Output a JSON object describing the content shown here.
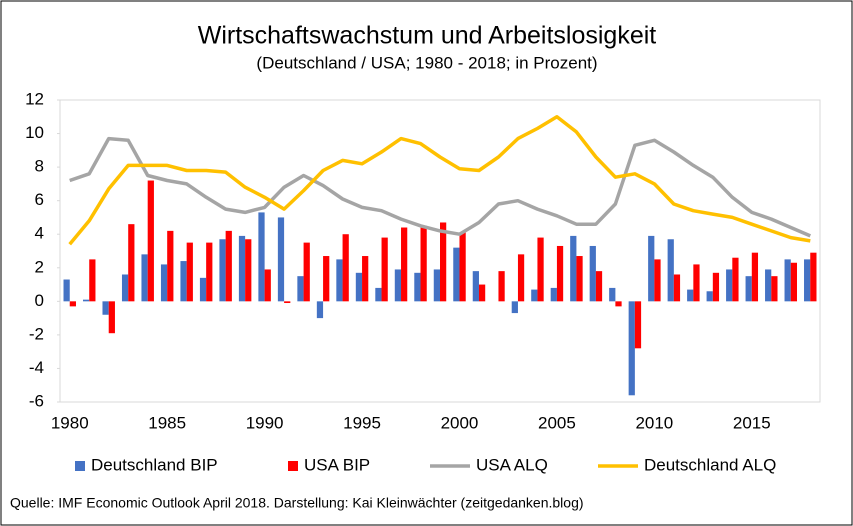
{
  "chart_data": {
    "type": "combo",
    "title": "Wirtschaftswachstum und Arbeitslosigkeit",
    "subtitle": "(Deutschland / USA; 1980 - 2018; in Prozent)",
    "source": "Quelle: IMF Economic Outlook April 2018. Darstellung: Kai Kleinwächter (zeitgedanken.blog)",
    "categories": [
      "1980",
      null,
      null,
      null,
      null,
      "1985",
      null,
      null,
      null,
      null,
      "1990",
      null,
      null,
      null,
      null,
      "1995",
      null,
      null,
      null,
      null,
      "2000",
      null,
      null,
      null,
      null,
      "2005",
      null,
      null,
      null,
      null,
      "2010",
      null,
      null,
      null,
      null,
      "2015",
      null,
      null,
      null
    ],
    "ylim": [
      -6,
      12
    ],
    "yticks": [
      -6,
      -4,
      -2,
      0,
      2,
      4,
      6,
      8,
      10,
      12
    ],
    "series": [
      {
        "name": "Deutschland BIP",
        "type": "bar",
        "color": "#4472c4",
        "values": [
          1.3,
          0.1,
          -0.8,
          1.6,
          2.8,
          2.2,
          2.4,
          1.4,
          3.7,
          3.9,
          5.3,
          5.0,
          1.5,
          -1.0,
          2.5,
          1.7,
          0.8,
          1.9,
          1.7,
          1.9,
          3.2,
          1.8,
          0.0,
          -0.7,
          0.7,
          0.8,
          3.9,
          3.3,
          0.8,
          -5.6,
          3.9,
          3.7,
          0.7,
          0.6,
          1.9,
          1.5,
          1.9,
          2.5,
          2.5
        ]
      },
      {
        "name": "USA BIP",
        "type": "bar",
        "color": "#ff0000",
        "values": [
          -0.3,
          2.5,
          -1.9,
          4.6,
          7.2,
          4.2,
          3.5,
          3.5,
          4.2,
          3.7,
          1.9,
          -0.1,
          3.5,
          2.7,
          4.0,
          2.7,
          3.8,
          4.4,
          4.5,
          4.7,
          4.1,
          1.0,
          1.8,
          2.8,
          3.8,
          3.3,
          2.7,
          1.8,
          -0.3,
          -2.8,
          2.5,
          1.6,
          2.2,
          1.7,
          2.6,
          2.9,
          1.5,
          2.3,
          2.9
        ]
      },
      {
        "name": "USA ALQ",
        "type": "line",
        "color": "#a5a5a5",
        "values": [
          7.2,
          7.6,
          9.7,
          9.6,
          7.5,
          7.2,
          7.0,
          6.2,
          5.5,
          5.3,
          5.6,
          6.8,
          7.5,
          6.9,
          6.1,
          5.6,
          5.4,
          4.9,
          4.5,
          4.2,
          4.0,
          4.7,
          5.8,
          6.0,
          5.5,
          5.1,
          4.6,
          4.6,
          5.8,
          9.3,
          9.6,
          8.9,
          8.1,
          7.4,
          6.2,
          5.3,
          4.9,
          4.4,
          3.9
        ]
      },
      {
        "name": "Deutschland ALQ",
        "type": "line",
        "color": "#ffc000",
        "values": [
          3.4,
          4.8,
          6.7,
          8.1,
          8.1,
          8.1,
          7.8,
          7.8,
          7.7,
          6.8,
          6.2,
          5.5,
          6.6,
          7.8,
          8.4,
          8.2,
          8.9,
          9.7,
          9.4,
          8.6,
          7.9,
          7.8,
          8.6,
          9.7,
          10.3,
          11.0,
          10.1,
          8.6,
          7.4,
          7.6,
          7.0,
          5.8,
          5.4,
          5.2,
          5.0,
          4.6,
          4.2,
          3.8,
          3.6
        ]
      }
    ]
  }
}
